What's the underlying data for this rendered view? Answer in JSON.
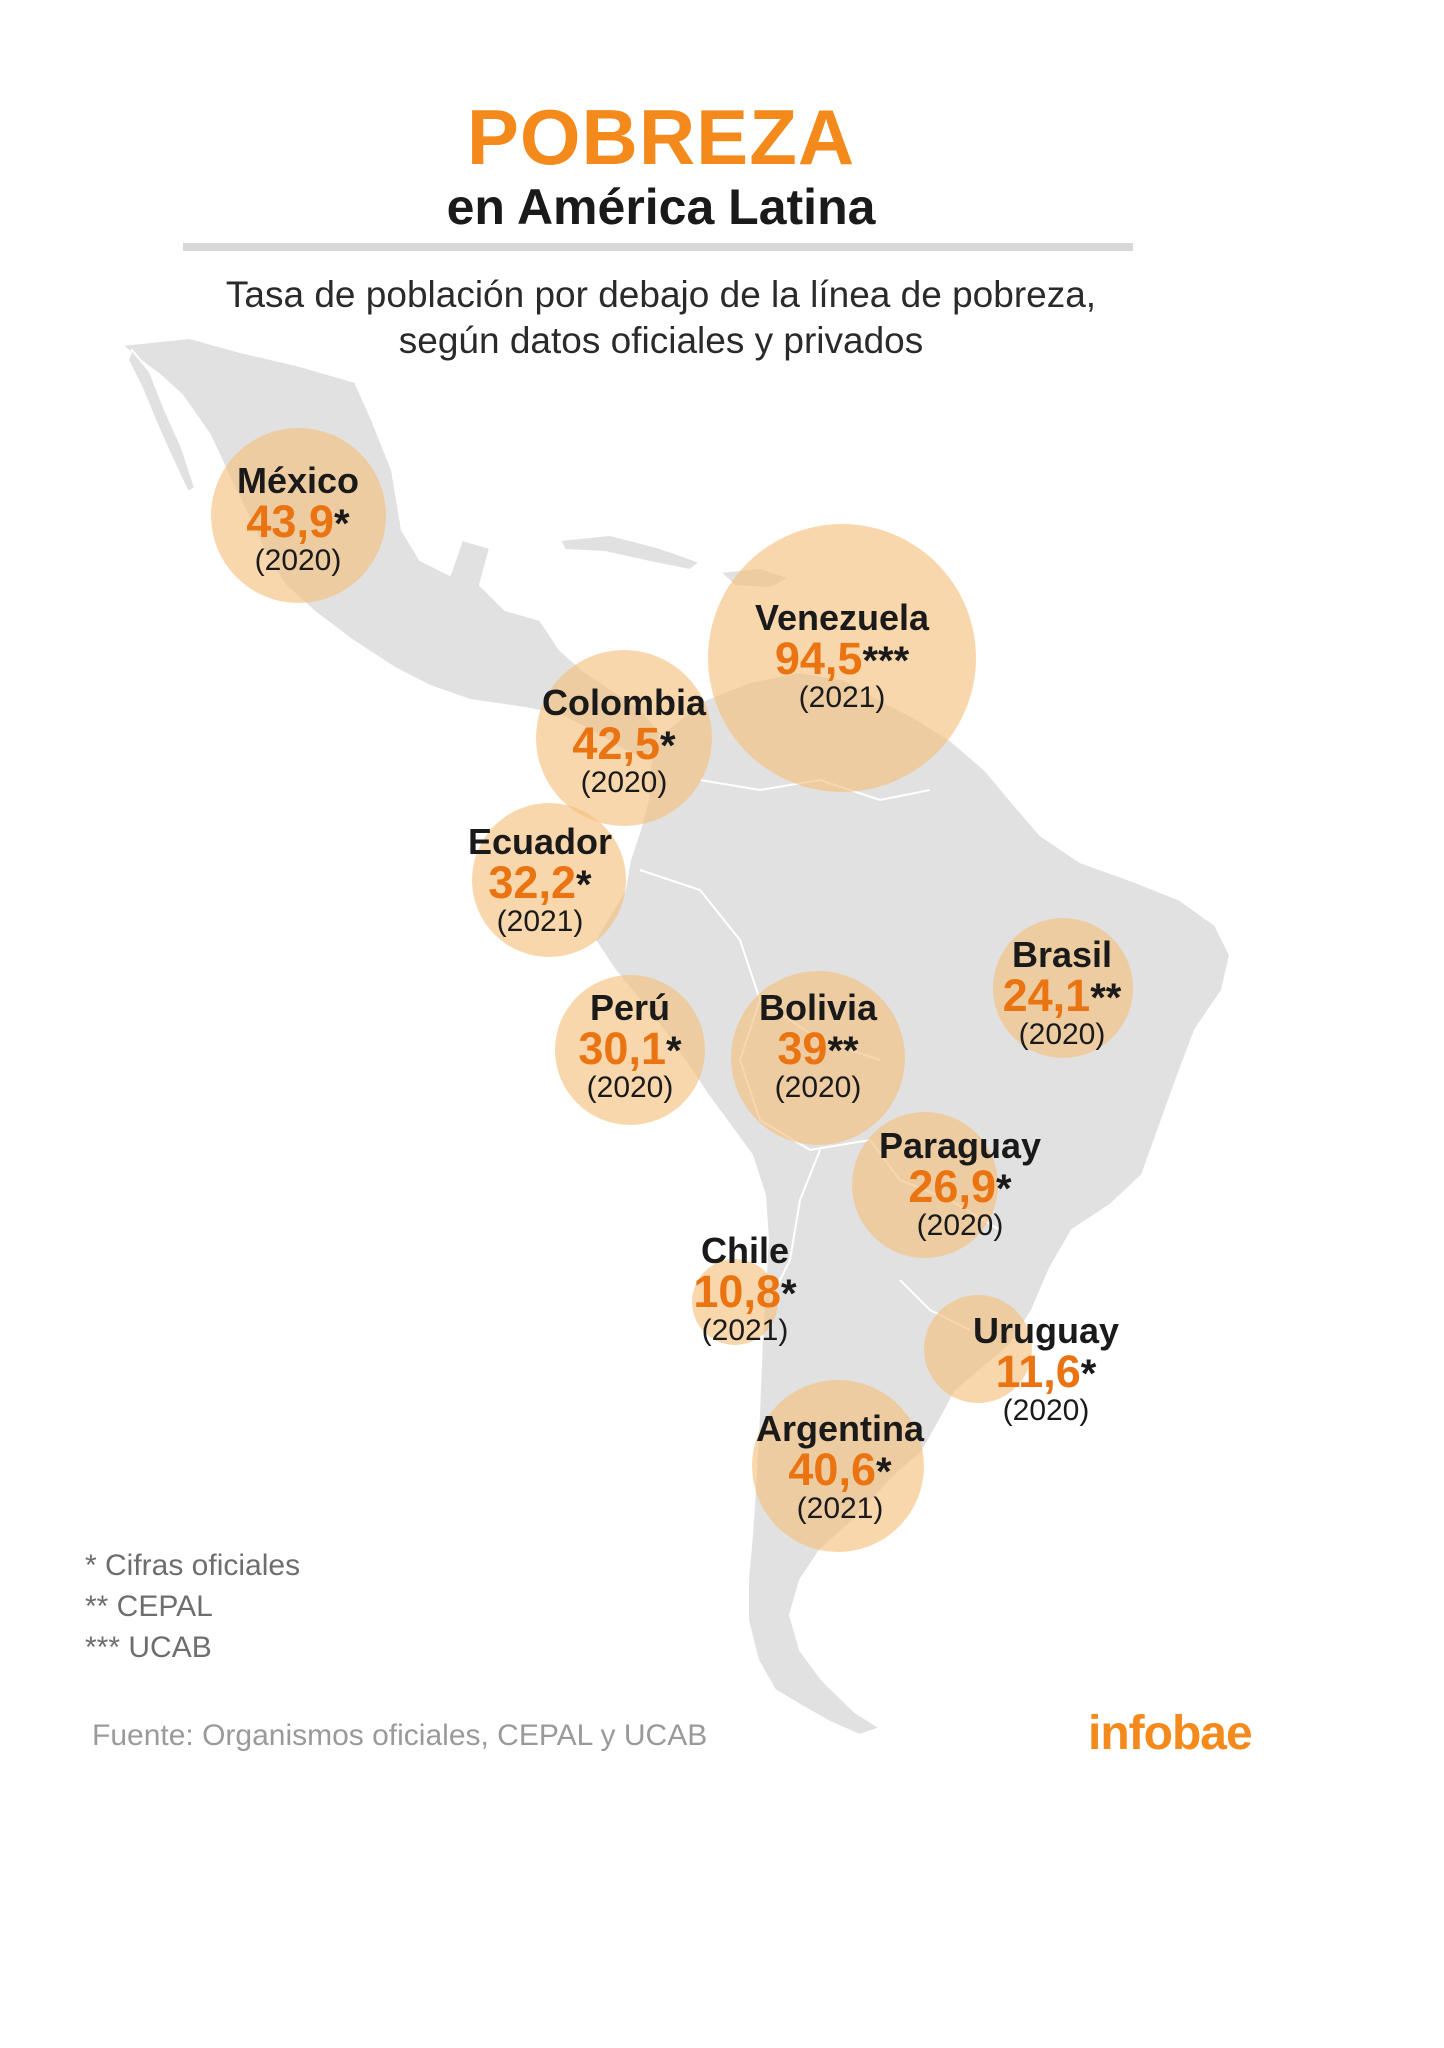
{
  "header": {
    "title": "POBREZA",
    "subtitle": "en América Latina",
    "description_line1": "Tasa de población por debajo de la línea de pobreza,",
    "description_line2": "según datos oficiales y privados"
  },
  "countries": [
    {
      "name": "México",
      "value": "43,9",
      "stars": "*",
      "year": "(2020)"
    },
    {
      "name": "Venezuela",
      "value": "94,5",
      "stars": "***",
      "year": "(2021)"
    },
    {
      "name": "Colombia",
      "value": "42,5",
      "stars": "*",
      "year": "(2020)"
    },
    {
      "name": "Ecuador",
      "value": "32,2",
      "stars": "*",
      "year": "(2021)"
    },
    {
      "name": "Perú",
      "value": "30,1",
      "stars": "*",
      "year": "(2020)"
    },
    {
      "name": "Bolivia",
      "value": "39",
      "stars": "**",
      "year": "(2020)"
    },
    {
      "name": "Brasil",
      "value": "24,1",
      "stars": "**",
      "year": "(2020)"
    },
    {
      "name": "Paraguay",
      "value": "26,9",
      "stars": "*",
      "year": "(2020)"
    },
    {
      "name": "Chile",
      "value": "10,8",
      "stars": "*",
      "year": "(2021)"
    },
    {
      "name": "Uruguay",
      "value": "11,6",
      "stars": "*",
      "year": "(2020)"
    },
    {
      "name": "Argentina",
      "value": "40,6",
      "stars": "*",
      "year": "(2021)"
    }
  ],
  "legend": {
    "one_star": "* Cifras oficiales",
    "two_stars": "** CEPAL",
    "three_stars": "*** UCAB"
  },
  "footer": {
    "source": "Fuente: Organismos oficiales, CEPAL y UCAB",
    "logo": "infobae"
  },
  "colors": {
    "accent": "#f38a1b",
    "value_text": "#ea7411",
    "bubble": "#f6be7a",
    "land": "#e1e1e1"
  }
}
